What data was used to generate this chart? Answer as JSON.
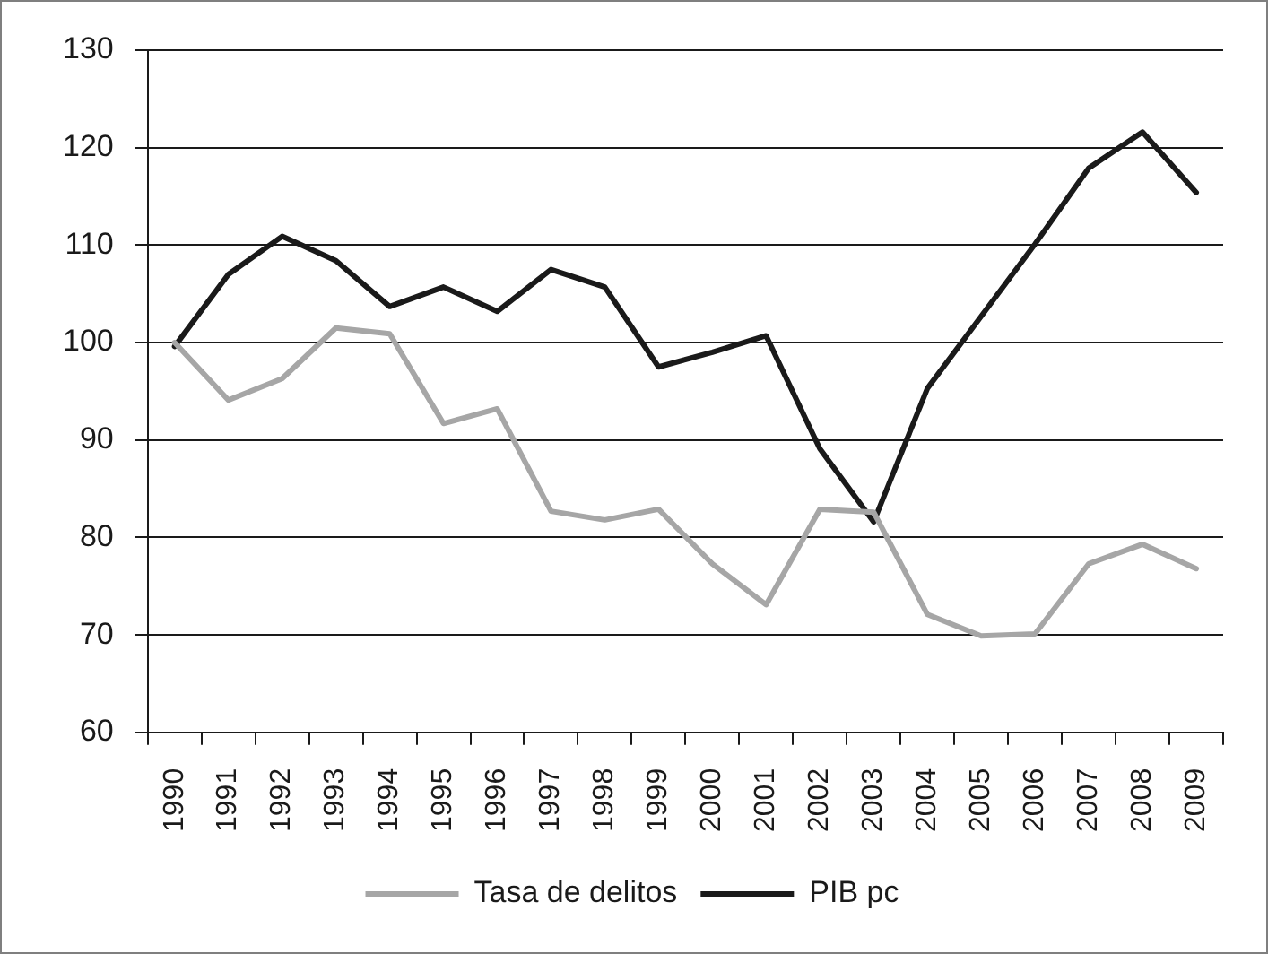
{
  "chart_data": {
    "type": "line",
    "categories": [
      "1990",
      "1991",
      "1992",
      "1993",
      "1994",
      "1995",
      "1996",
      "1997",
      "1998",
      "1999",
      "2000",
      "2001",
      "2002",
      "2003",
      "2004",
      "2005",
      "2006",
      "2007",
      "2008",
      "2009"
    ],
    "series": [
      {
        "name": "Tasa de delitos",
        "color": "#a6a6a6",
        "values": [
          100,
          94.1,
          96.3,
          101.5,
          100.9,
          91.7,
          93.2,
          82.7,
          81.8,
          82.9,
          77.3,
          73.1,
          82.9,
          82.6,
          72.1,
          69.9,
          70.1,
          77.3,
          79.3,
          76.8
        ]
      },
      {
        "name": "PIB pc",
        "color": "#1a1a1a",
        "values": [
          99.6,
          107,
          110.9,
          108.4,
          103.7,
          105.7,
          103.2,
          107.5,
          105.7,
          97.5,
          99,
          100.7,
          89.1,
          81.6,
          95.3,
          102.7,
          110.1,
          117.9,
          121.6,
          115.4
        ]
      }
    ],
    "ylim": [
      60,
      130
    ],
    "yticks": [
      60,
      70,
      80,
      90,
      100,
      110,
      120,
      130
    ],
    "grid": "y",
    "legend": "bottom",
    "marker": "none",
    "line_style": "solid"
  }
}
